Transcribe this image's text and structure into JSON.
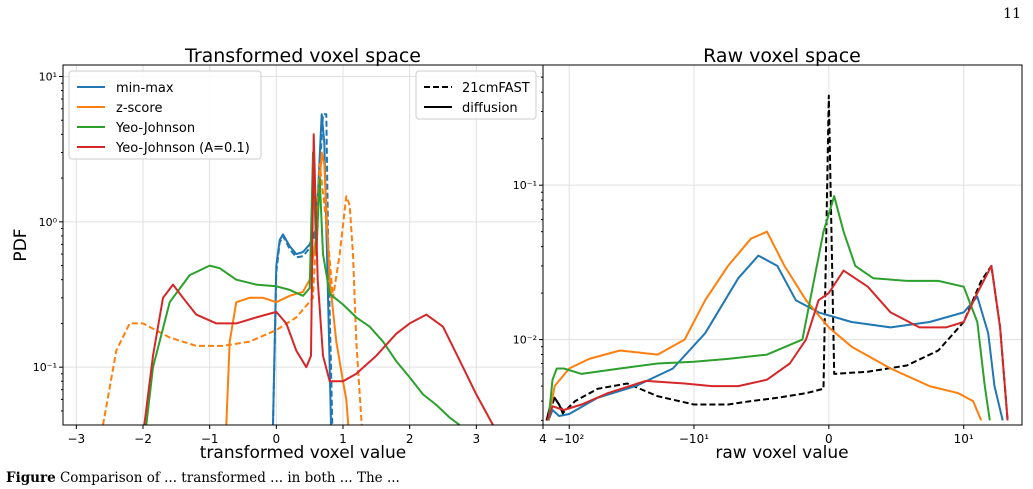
{
  "page": {
    "number": "11"
  },
  "caption": {
    "label": "Figure",
    "text": "Comparison of ... transformed ... in both ... The ... "
  },
  "legend_styles": [
    {
      "label": "21cmFAST",
      "dash": "dashed"
    },
    {
      "label": "diffusion",
      "dash": "solid"
    }
  ],
  "colors": {
    "min_max": "#1f77b4",
    "z_score": "#ff7f0e",
    "yeo_johnson": "#2ca02c",
    "yeo_johnson_a": "#d62728",
    "reference": "#000000"
  },
  "chart_data": [
    {
      "type": "line",
      "title": "Transformed voxel space",
      "xlabel": "transformed voxel value",
      "ylabel": "PDF",
      "xlim": [
        -3.2,
        4.0
      ],
      "ylim": [
        0.04,
        12
      ],
      "yscale": "log",
      "grid": true,
      "xticks": [
        "−3",
        "−2",
        "−1",
        "0",
        "1",
        "2",
        "3",
        "4"
      ],
      "yticks": [
        "10⁻¹",
        "10⁰",
        "10¹"
      ],
      "legend_position": "top-left",
      "series": [
        {
          "name": "min-max",
          "color": "#1f77b4",
          "style": "solid",
          "x": [
            -0.05,
            0.0,
            0.05,
            0.1,
            0.2,
            0.3,
            0.4,
            0.5,
            0.6,
            0.68,
            0.72,
            0.76,
            0.8,
            0.82
          ],
          "y": [
            0.04,
            0.5,
            0.75,
            0.82,
            0.68,
            0.6,
            0.62,
            0.7,
            0.9,
            5.5,
            3.5,
            0.6,
            0.1,
            0.04
          ]
        },
        {
          "name": "min-max",
          "color": "#1f77b4",
          "style": "dashed",
          "x": [
            -0.05,
            0.0,
            0.05,
            0.1,
            0.2,
            0.3,
            0.4,
            0.5,
            0.6,
            0.7,
            0.75,
            0.78,
            0.82,
            0.84
          ],
          "y": [
            0.04,
            0.45,
            0.72,
            0.8,
            0.65,
            0.57,
            0.58,
            0.66,
            0.85,
            5.5,
            5.5,
            0.6,
            0.1,
            0.04
          ]
        },
        {
          "name": "z-score",
          "color": "#ff7f0e",
          "style": "solid",
          "x": [
            -0.75,
            -0.7,
            -0.6,
            -0.4,
            -0.2,
            0.0,
            0.2,
            0.4,
            0.5,
            0.6,
            0.68,
            0.72,
            0.8,
            0.9,
            1.0,
            1.05,
            1.08
          ],
          "y": [
            0.04,
            0.15,
            0.28,
            0.3,
            0.3,
            0.28,
            0.31,
            0.33,
            0.4,
            0.8,
            3.0,
            2.5,
            0.4,
            0.15,
            0.08,
            0.06,
            0.04
          ]
        },
        {
          "name": "z-score",
          "color": "#ff7f0e",
          "style": "dashed",
          "x": [
            -2.6,
            -2.4,
            -2.2,
            -2.0,
            -1.6,
            -1.2,
            -0.8,
            -0.4,
            0.0,
            0.3,
            0.55,
            0.65,
            0.75,
            0.85,
            0.95,
            1.05,
            1.1,
            1.15,
            1.2,
            1.28
          ],
          "y": [
            0.04,
            0.13,
            0.2,
            0.2,
            0.16,
            0.14,
            0.14,
            0.15,
            0.18,
            0.22,
            0.3,
            2.5,
            1.0,
            0.3,
            0.6,
            1.5,
            1.3,
            0.6,
            0.15,
            0.04
          ]
        },
        {
          "name": "Yeo-Johnson",
          "color": "#2ca02c",
          "style": "solid",
          "x": [
            -1.95,
            -1.85,
            -1.6,
            -1.3,
            -1.0,
            -0.85,
            -0.6,
            -0.3,
            0.0,
            0.2,
            0.4,
            0.5,
            0.55,
            0.6,
            0.65,
            0.7,
            0.8,
            1.0,
            1.2,
            1.4,
            1.6,
            1.8,
            2.0,
            2.2,
            2.4,
            2.6,
            2.75
          ],
          "y": [
            0.04,
            0.1,
            0.28,
            0.43,
            0.5,
            0.48,
            0.4,
            0.37,
            0.36,
            0.34,
            0.31,
            0.35,
            3.0,
            0.6,
            2.0,
            0.6,
            0.32,
            0.27,
            0.22,
            0.19,
            0.15,
            0.11,
            0.085,
            0.065,
            0.055,
            0.045,
            0.04
          ]
        },
        {
          "name": "Yeo-Johnson (A=0.1)",
          "color": "#d62728",
          "style": "solid",
          "x": [
            -1.98,
            -1.85,
            -1.7,
            -1.55,
            -1.4,
            -1.2,
            -0.9,
            -0.6,
            -0.3,
            0.0,
            0.15,
            0.3,
            0.45,
            0.52,
            0.56,
            0.62,
            0.7,
            0.8,
            1.0,
            1.2,
            1.5,
            1.8,
            2.0,
            2.25,
            2.5,
            2.8,
            3.0,
            3.25
          ],
          "y": [
            0.04,
            0.12,
            0.3,
            0.37,
            0.3,
            0.23,
            0.2,
            0.2,
            0.22,
            0.24,
            0.2,
            0.13,
            0.1,
            0.12,
            4.0,
            0.4,
            0.12,
            0.08,
            0.08,
            0.09,
            0.12,
            0.17,
            0.2,
            0.23,
            0.19,
            0.1,
            0.065,
            0.04
          ]
        }
      ]
    },
    {
      "type": "line",
      "title": "Raw voxel space",
      "xlabel": "raw voxel value",
      "ylabel": "",
      "xscale": "symlog",
      "xlim": [
        -160,
        30
      ],
      "ylim": [
        0.0028,
        0.6
      ],
      "yscale": "log",
      "grid": true,
      "xticks": [
        "−10²",
        "−10¹",
        "0",
        "10¹"
      ],
      "yticks": [
        "10⁻²",
        "10⁻¹"
      ],
      "legend_position": "top-right",
      "series": [
        {
          "name": "21cmFAST",
          "color": "#000000",
          "style": "dashed",
          "x": [
            -150,
            -130,
            -110,
            -90,
            -60,
            -35,
            -20,
            -10,
            -5,
            -3,
            -1.5,
            -0.5,
            -0.1,
            0,
            0.1,
            1,
            3,
            6,
            10,
            14,
            17,
            20,
            23
          ],
          "y": [
            0.003,
            0.0042,
            0.0034,
            0.004,
            0.0048,
            0.0052,
            0.0043,
            0.0038,
            0.0038,
            0.004,
            0.0042,
            0.0045,
            0.0048,
            0.38,
            0.006,
            0.0062,
            0.0068,
            0.0085,
            0.013,
            0.024,
            0.03,
            0.012,
            0.003
          ]
        },
        {
          "name": "diffusion",
          "color": "#000000",
          "style": "solid",
          "x": [
            -150,
            -140,
            -130,
            -120,
            -110
          ],
          "y": [
            0.003,
            0.0038,
            0.0042,
            0.0038,
            0.0032
          ]
        },
        {
          "name": "min-max",
          "color": "#1f77b4",
          "style": "solid",
          "x": [
            -145,
            -135,
            -120,
            -100,
            -60,
            -30,
            -15,
            -8,
            -4,
            -2.5,
            -1.5,
            -0.8,
            -0.2,
            0.5,
            2,
            5,
            10,
            13,
            16,
            18,
            21
          ],
          "y": [
            0.003,
            0.0035,
            0.0032,
            0.0033,
            0.0042,
            0.005,
            0.0065,
            0.011,
            0.025,
            0.035,
            0.03,
            0.018,
            0.015,
            0.013,
            0.012,
            0.013,
            0.015,
            0.019,
            0.011,
            0.005,
            0.003
          ]
        },
        {
          "name": "z-score",
          "color": "#ff7f0e",
          "style": "solid",
          "x": [
            -145,
            -130,
            -100,
            -70,
            -40,
            -20,
            -12,
            -8,
            -5,
            -3,
            -2,
            -1.2,
            -0.5,
            0,
            0.5,
            2,
            5,
            9,
            12,
            14
          ],
          "y": [
            0.003,
            0.005,
            0.0065,
            0.0075,
            0.0085,
            0.008,
            0.01,
            0.018,
            0.03,
            0.045,
            0.05,
            0.03,
            0.018,
            0.012,
            0.009,
            0.0065,
            0.005,
            0.0045,
            0.004,
            0.003
          ]
        },
        {
          "name": "Yeo-Johnson",
          "color": "#2ca02c",
          "style": "solid",
          "x": [
            -145,
            -135,
            -125,
            -110,
            -80,
            -40,
            -20,
            -10,
            -5,
            -2,
            -0.6,
            -0.1,
            0.1,
            0.3,
            0.6,
            1.2,
            3,
            6,
            10,
            13,
            15,
            16.5
          ],
          "y": [
            0.003,
            0.0055,
            0.0065,
            0.0065,
            0.006,
            0.0065,
            0.007,
            0.0072,
            0.0075,
            0.008,
            0.01,
            0.05,
            0.085,
            0.05,
            0.03,
            0.025,
            0.024,
            0.024,
            0.022,
            0.013,
            0.005,
            0.003
          ]
        },
        {
          "name": "Yeo-Johnson (A=0.1)",
          "color": "#d62728",
          "style": "solid",
          "x": [
            -148,
            -135,
            -110,
            -80,
            -50,
            -25,
            -12,
            -7,
            -4,
            -2,
            -1,
            -0.5,
            -0.2,
            0,
            0.3,
            1,
            2,
            4,
            7,
            10,
            13,
            17,
            20,
            23
          ],
          "y": [
            0.003,
            0.0037,
            0.0035,
            0.0038,
            0.0045,
            0.0054,
            0.0052,
            0.005,
            0.005,
            0.0055,
            0.007,
            0.01,
            0.018,
            0.02,
            0.028,
            0.022,
            0.015,
            0.012,
            0.012,
            0.013,
            0.02,
            0.03,
            0.012,
            0.003
          ]
        }
      ]
    }
  ]
}
